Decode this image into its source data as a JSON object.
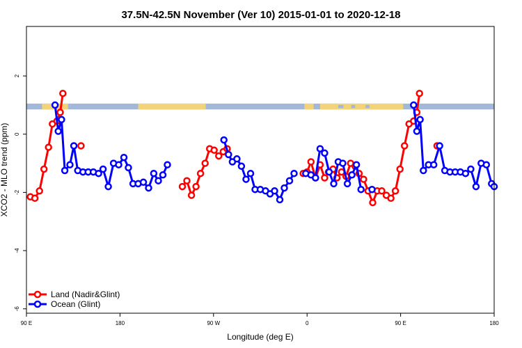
{
  "chart_data": {
    "type": "line",
    "title": "37.5N-42.5N November (Ver 10)   2015-01-01 to 2020-12-18",
    "xlabel": "Longitude (deg E)",
    "ylabel": "XCO2 - MLO trend (ppm)",
    "xlim": [
      -90,
      270
    ],
    "ylim": [
      -6.15,
      3.7
    ],
    "x_ticks": [
      {
        "value": -90,
        "label": "90 E"
      },
      {
        "value": -18,
        "label": "180"
      },
      {
        "value": 54,
        "label": "90 W"
      },
      {
        "value": 126,
        "label": "0"
      },
      {
        "value": 198,
        "label": "90 E"
      },
      {
        "value": 270,
        "label": "180"
      }
    ],
    "y_ticks": [
      {
        "value": -6,
        "label": "-6"
      },
      {
        "value": -4,
        "label": "-4"
      },
      {
        "value": -2,
        "label": "-2"
      },
      {
        "value": 0,
        "label": "0"
      },
      {
        "value": 2,
        "label": "2"
      }
    ],
    "band": {
      "y_top": 1.05,
      "y_bottom": 0.85,
      "ocean_color": "#a3b7d9",
      "land_color": "#f2d377"
    },
    "series": [
      {
        "name": "Land (Nadir&Glint)",
        "color": "#ff0000",
        "points": [
          [
            -87,
            -2.15
          ],
          [
            -83.5,
            -2.2
          ],
          [
            -80,
            -1.95
          ],
          [
            -76.5,
            -1.2
          ],
          [
            -73,
            -0.45
          ],
          [
            -70,
            0.35
          ],
          [
            -66.5,
            0.45
          ],
          [
            -64,
            0.75
          ],
          [
            -62,
            1.4
          ],
          null,
          [
            -48,
            -0.4
          ],
          null,
          [
            30,
            -1.8
          ],
          [
            33.5,
            -1.6
          ],
          [
            37,
            -2.1
          ],
          [
            40.5,
            -1.8
          ],
          [
            44,
            -1.35
          ],
          [
            47.5,
            -1.0
          ],
          [
            51,
            -0.5
          ],
          [
            54.5,
            -0.55
          ],
          [
            58,
            -0.75
          ],
          [
            61.5,
            -0.6
          ],
          [
            64.5,
            -0.5
          ],
          null,
          [
            123,
            -1.35
          ],
          [
            126,
            -1.3
          ],
          [
            129,
            -0.95
          ],
          [
            132.5,
            -1.5
          ],
          [
            136,
            -1.05
          ],
          [
            139.5,
            -1.5
          ],
          [
            142.5,
            -1.3
          ],
          [
            146,
            -1.2
          ],
          [
            149,
            -1.5
          ],
          [
            152.5,
            -1.3
          ],
          [
            156,
            -1.45
          ],
          [
            159.5,
            -1.0
          ],
          [
            163,
            -1.1
          ],
          [
            166,
            -1.35
          ],
          [
            169.5,
            -1.55
          ],
          [
            173,
            -1.95
          ],
          [
            176.5,
            -2.35
          ],
          [
            180,
            -1.95
          ],
          [
            183.5,
            -1.95
          ],
          [
            187,
            -2.1
          ],
          [
            190.5,
            -2.2
          ],
          [
            194,
            -1.95
          ],
          [
            197.5,
            -1.2
          ],
          [
            201,
            -0.4
          ],
          [
            204.5,
            0.35
          ],
          [
            208,
            0.45
          ],
          [
            210.5,
            0.75
          ],
          [
            212.5,
            1.4
          ],
          null,
          [
            226,
            -0.4
          ]
        ]
      },
      {
        "name": "Ocean (Glint)",
        "color": "#0000ff",
        "points": [
          [
            -68,
            1.0
          ],
          [
            -65.5,
            0.1
          ],
          [
            -63,
            0.5
          ],
          [
            -60.5,
            -1.25
          ],
          [
            -56.5,
            -1.05
          ],
          [
            -53.5,
            -0.4
          ],
          [
            -50.5,
            -1.25
          ],
          [
            -46.5,
            -1.3
          ],
          [
            -42.5,
            -1.3
          ],
          [
            -38.5,
            -1.3
          ],
          [
            -34.5,
            -1.35
          ],
          [
            -31,
            -1.2
          ],
          [
            -27,
            -1.8
          ],
          [
            -23,
            -1.0
          ],
          [
            -19,
            -1.05
          ],
          [
            -15,
            -0.8
          ],
          [
            -11.5,
            -1.15
          ],
          [
            -8,
            -1.7
          ],
          [
            -4,
            -1.7
          ],
          [
            0,
            -1.65
          ],
          [
            4,
            -1.85
          ],
          [
            8,
            -1.35
          ],
          [
            11.5,
            -1.6
          ],
          [
            15,
            -1.4
          ],
          [
            18.5,
            -1.05
          ],
          null,
          [
            62,
            -0.2
          ],
          [
            65.5,
            -0.7
          ],
          [
            68.5,
            -0.95
          ],
          [
            72,
            -0.85
          ],
          [
            75.5,
            -1.1
          ],
          [
            79,
            -1.55
          ],
          [
            82.5,
            -1.35
          ],
          [
            86,
            -1.9
          ],
          [
            90,
            -1.9
          ],
          [
            94,
            -1.95
          ],
          [
            97.5,
            -2.05
          ],
          [
            101,
            -1.95
          ],
          [
            105,
            -2.25
          ],
          [
            108.5,
            -1.85
          ],
          [
            112.5,
            -1.6
          ],
          [
            116,
            -1.35
          ],
          null,
          [
            125,
            -1.35
          ],
          [
            129,
            -1.4
          ],
          [
            132.5,
            -1.5
          ],
          [
            136,
            -0.5
          ],
          [
            139.5,
            -0.65
          ],
          [
            143,
            -1.3
          ],
          [
            146.5,
            -1.7
          ],
          [
            150,
            -0.95
          ],
          [
            153.5,
            -1.0
          ],
          [
            157,
            -1.7
          ],
          [
            160.5,
            -1.4
          ],
          [
            164,
            -1.05
          ],
          [
            167.5,
            -1.9
          ],
          null,
          [
            176,
            -1.9
          ],
          null,
          [
            208,
            1.0
          ],
          [
            210.5,
            0.1
          ],
          [
            213,
            0.5
          ],
          [
            215.5,
            -1.25
          ],
          [
            219.5,
            -1.05
          ],
          [
            223.5,
            -1.05
          ],
          [
            228,
            -0.4
          ],
          [
            232,
            -1.25
          ],
          [
            236,
            -1.3
          ],
          [
            240,
            -1.3
          ],
          [
            244,
            -1.3
          ],
          [
            248,
            -1.35
          ],
          [
            252,
            -1.2
          ],
          [
            256,
            -1.8
          ],
          [
            260,
            -1.0
          ],
          [
            264,
            -1.05
          ],
          [
            268,
            -1.7
          ],
          [
            270,
            -1.8
          ]
        ]
      }
    ]
  }
}
